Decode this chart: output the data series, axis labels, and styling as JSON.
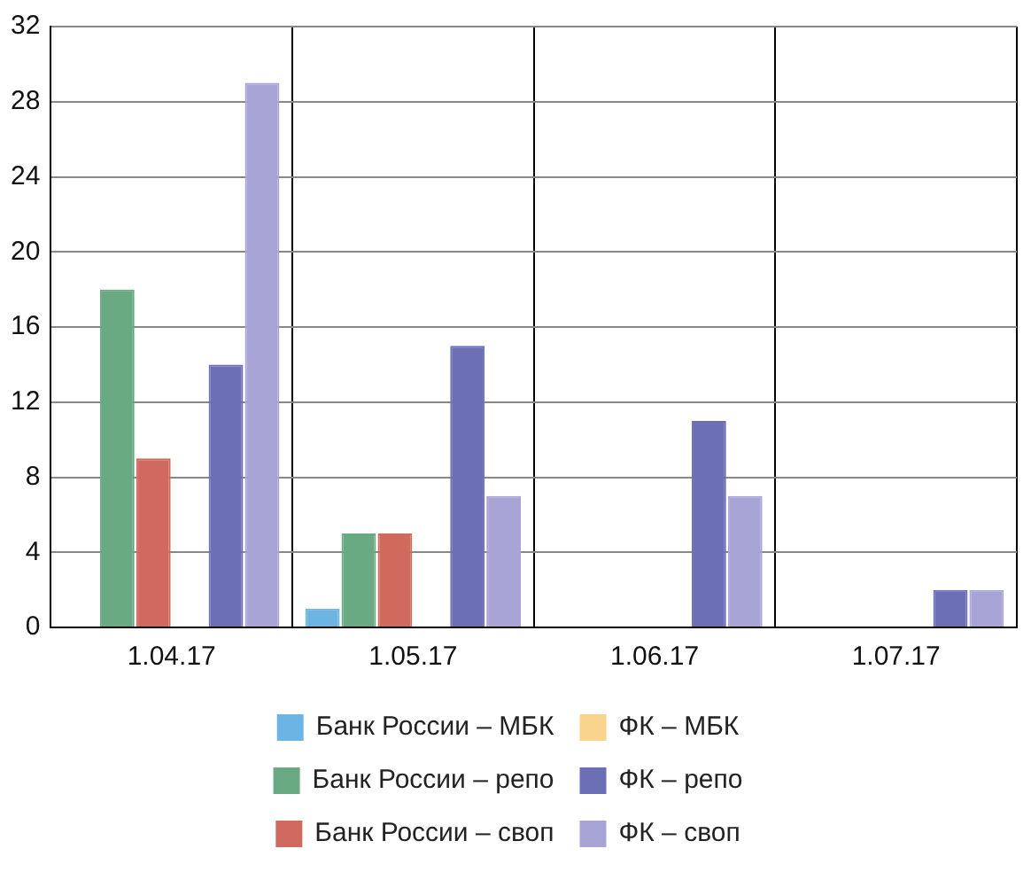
{
  "chart_data": {
    "type": "bar",
    "categories": [
      "1.04.17",
      "1.05.17",
      "1.06.17",
      "1.07.17"
    ],
    "series": [
      {
        "name": "Банк России – МБК",
        "color": "#6cb4e4",
        "values": [
          0,
          1,
          0,
          0
        ]
      },
      {
        "name": "Банк России – репо",
        "color": "#6aaa82",
        "values": [
          18,
          5,
          0,
          0
        ]
      },
      {
        "name": "Банк России – своп",
        "color": "#d06a5e",
        "values": [
          9,
          5,
          0,
          0
        ]
      },
      {
        "name": "ФК – МБК",
        "color": "#f8d48c",
        "values": [
          0,
          0,
          0,
          0
        ]
      },
      {
        "name": "ФК – репо",
        "color": "#6c6eb6",
        "values": [
          14,
          15,
          11,
          2
        ]
      },
      {
        "name": "ФК – своп",
        "color": "#a9a4d6",
        "values": [
          29,
          7,
          7,
          2
        ]
      }
    ],
    "ylim": [
      0,
      32
    ],
    "yticks": [
      0,
      4,
      8,
      12,
      16,
      20,
      24,
      28,
      32
    ],
    "grid": true,
    "legend": "bottom"
  }
}
